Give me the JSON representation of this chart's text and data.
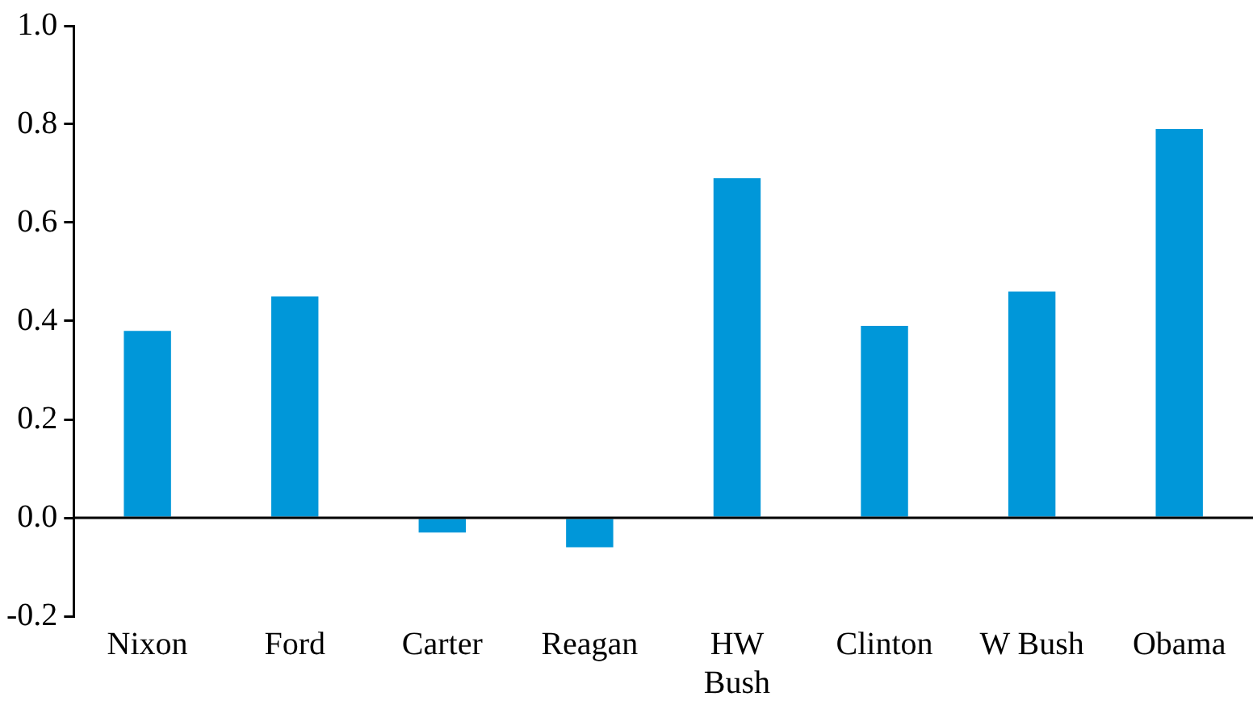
{
  "chart_data": {
    "type": "bar",
    "categories": [
      "Nixon",
      "Ford",
      "Carter",
      "Reagan",
      "HW\nBush",
      "Clinton",
      "W Bush",
      "Obama"
    ],
    "values": [
      0.38,
      0.45,
      -0.03,
      -0.06,
      0.69,
      0.39,
      0.46,
      0.79
    ],
    "color": "#0097d9",
    "ylim": [
      -0.2,
      1.0
    ],
    "yticks": [
      {
        "value": -0.2,
        "label": "-0.2"
      },
      {
        "value": 0,
        "label": "0.0"
      },
      {
        "value": 0.2,
        "label": "0.2"
      },
      {
        "value": 0.4,
        "label": "0.4"
      },
      {
        "value": 0.6,
        "label": "0.6"
      },
      {
        "value": 0.8,
        "label": "0.8"
      },
      {
        "value": 1.0,
        "label": "1.0"
      }
    ],
    "grid": false,
    "ref_lines": [
      {
        "axis": "y",
        "value": 0,
        "color": "#000000"
      }
    ],
    "legend": false
  }
}
